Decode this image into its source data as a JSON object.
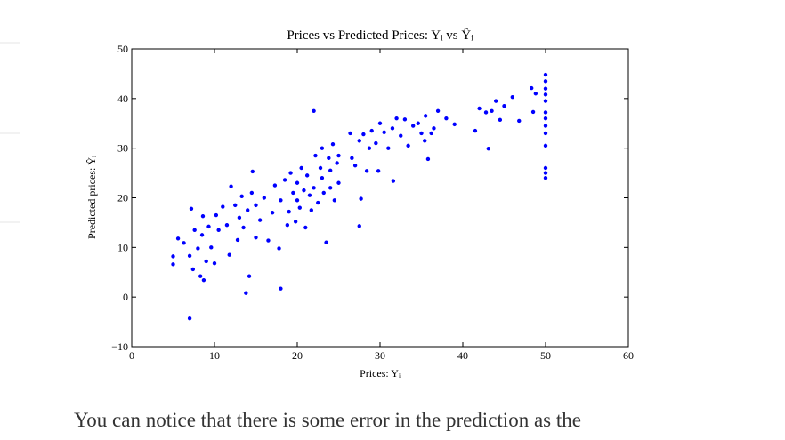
{
  "chart_data": {
    "type": "scatter",
    "title": "Prices vs Predicted Prices: Yᵢ vs Ŷᵢ",
    "x_label": "Prices: Yᵢ",
    "y_label": "Predicted prices: Ŷᵢ",
    "color": "#0000ff",
    "xlim": [
      0,
      60
    ],
    "xticks": [
      0,
      10,
      20,
      30,
      40,
      50,
      60
    ],
    "ylim": [
      -10,
      50
    ],
    "yticks": [
      {
        "value": -10,
        "label": "−10"
      },
      0,
      10,
      20,
      30,
      40,
      50
    ],
    "x": [
      5,
      5,
      5.6,
      6.3,
      7,
      7,
      7.2,
      7.4,
      7.6,
      8,
      8.3,
      8.5,
      8.6,
      8.7,
      9,
      9.3,
      9.6,
      10,
      10.2,
      10.5,
      11,
      11.5,
      11.8,
      12,
      12.5,
      12.8,
      13,
      13.3,
      13.5,
      13.8,
      14,
      14.2,
      14.5,
      14.6,
      15,
      15,
      15.5,
      16,
      16.5,
      17,
      17.3,
      17.8,
      18,
      18,
      18.5,
      18.8,
      19,
      19.2,
      19.5,
      19.8,
      20,
      20,
      20.3,
      20.5,
      20.8,
      21,
      21.2,
      21.5,
      21.7,
      22,
      22,
      22.2,
      22.5,
      22.8,
      23,
      23,
      23.2,
      23.5,
      23.8,
      24,
      24,
      24.3,
      24.5,
      24.8,
      25,
      25,
      26.4,
      26.6,
      27,
      27.5,
      27.5,
      27.7,
      28,
      28.4,
      28.7,
      29,
      29.5,
      29.8,
      30,
      30.5,
      31,
      31.5,
      31.6,
      32,
      32.5,
      33,
      33.4,
      34,
      34.6,
      35,
      35.4,
      35.5,
      35.8,
      36.2,
      36.5,
      37,
      38,
      39,
      41.5,
      42,
      42.8,
      43.1,
      43.5,
      44,
      44.5,
      45,
      46,
      46.8,
      48.3,
      48.5,
      48.8,
      50,
      50,
      50,
      50,
      50,
      50,
      50,
      50,
      50,
      50,
      50,
      50,
      50
    ],
    "y": [
      8.2,
      6.6,
      11.8,
      10.9,
      -4.3,
      8.3,
      17.8,
      5.6,
      13.5,
      9.8,
      4.2,
      12.5,
      16.3,
      3.4,
      7.2,
      14.2,
      10,
      6.8,
      16.5,
      13.5,
      18.2,
      14.5,
      8.5,
      22.3,
      18.5,
      11.5,
      16,
      20.3,
      14,
      0.8,
      17.5,
      4.2,
      21,
      25.3,
      12,
      18.5,
      15.5,
      20,
      11.4,
      17,
      22.5,
      9.8,
      1.7,
      19.5,
      23.6,
      14.5,
      17.2,
      25,
      21,
      15.2,
      19.5,
      23,
      18,
      26,
      21.5,
      14,
      24.5,
      20.5,
      17.5,
      22,
      37.5,
      28.5,
      19,
      26,
      30,
      24,
      21,
      11,
      28,
      25.5,
      22,
      30.8,
      19.5,
      27,
      23,
      28.5,
      33,
      28,
      26.5,
      14.3,
      31.5,
      19.8,
      32.8,
      25.4,
      30,
      33.5,
      31,
      25.4,
      35,
      33.2,
      30,
      34,
      23.4,
      36,
      32.5,
      35.8,
      30.5,
      34.5,
      35,
      33,
      31.5,
      36.5,
      27.8,
      33,
      34,
      37.5,
      36,
      34.8,
      33.5,
      38,
      37.2,
      29.9,
      37.5,
      39.5,
      35.7,
      38.5,
      40.3,
      35.5,
      42.1,
      37.3,
      41,
      44.8,
      43.5,
      42,
      40.8,
      39.5,
      37.2,
      36,
      34.5,
      33,
      30.5,
      26,
      25,
      24
    ]
  },
  "paragraph": "You can notice that there is some error in  the prediction as the"
}
